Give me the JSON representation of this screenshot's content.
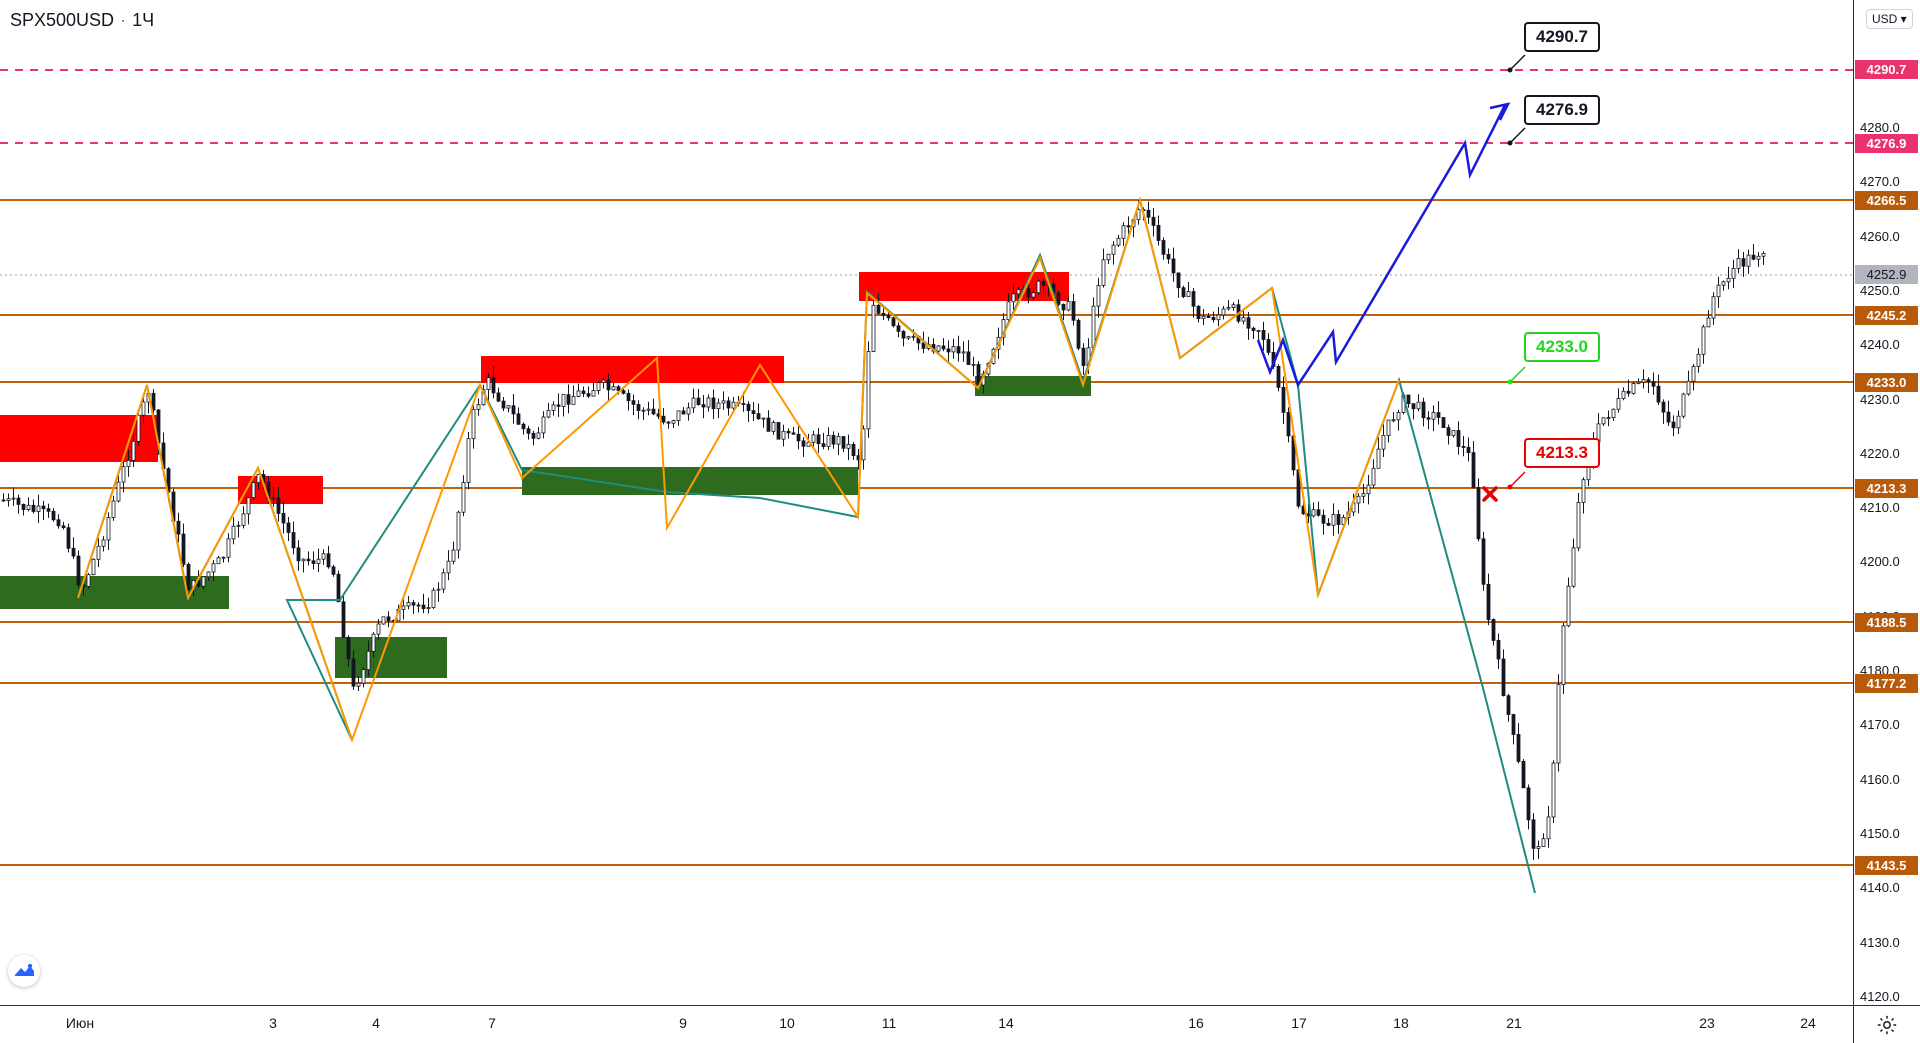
{
  "header": {
    "symbol": "SPX500USD",
    "interval": "1Ч"
  },
  "price_axis": {
    "currency": "USD",
    "ticks": [
      "4280.0",
      "4270.0",
      "4260.0",
      "4250.0",
      "4240.0",
      "4230.0",
      "4220.0",
      "4210.0",
      "4200.0",
      "4190.0",
      "4180.0",
      "4170.0",
      "4160.0",
      "4150.0",
      "4140.0",
      "4130.0",
      "4120.0"
    ]
  },
  "time_axis": {
    "labels": [
      "Июн",
      "3",
      "4",
      "7",
      "9",
      "10",
      "11",
      "14",
      "16",
      "17",
      "18",
      "21",
      "23",
      "24"
    ]
  },
  "colors": {
    "support_zone": "#2e7d1e",
    "resistance_zone": "#ff0000",
    "level_line": "#c0600a",
    "target_line": "#e8336d",
    "wave_orange": "#ff9800",
    "wave_teal": "#1e8c7e",
    "projection": "#1a1adb"
  },
  "levels": {
    "targets": [
      "4290.7",
      "4276.9"
    ],
    "orange": [
      "4266.5",
      "4245.2",
      "4233.0",
      "4213.3",
      "4188.5",
      "4177.2",
      "4143.5"
    ],
    "current_price": "4252.9"
  },
  "callouts": {
    "target_high": "4290.7",
    "target_low": "4276.9",
    "entry": "4233.0",
    "stop": "4213.3"
  },
  "icons": {
    "logo": "tradingview-logo-icon",
    "settings": "gear-icon",
    "stop_marker": "x-marker-icon"
  }
}
